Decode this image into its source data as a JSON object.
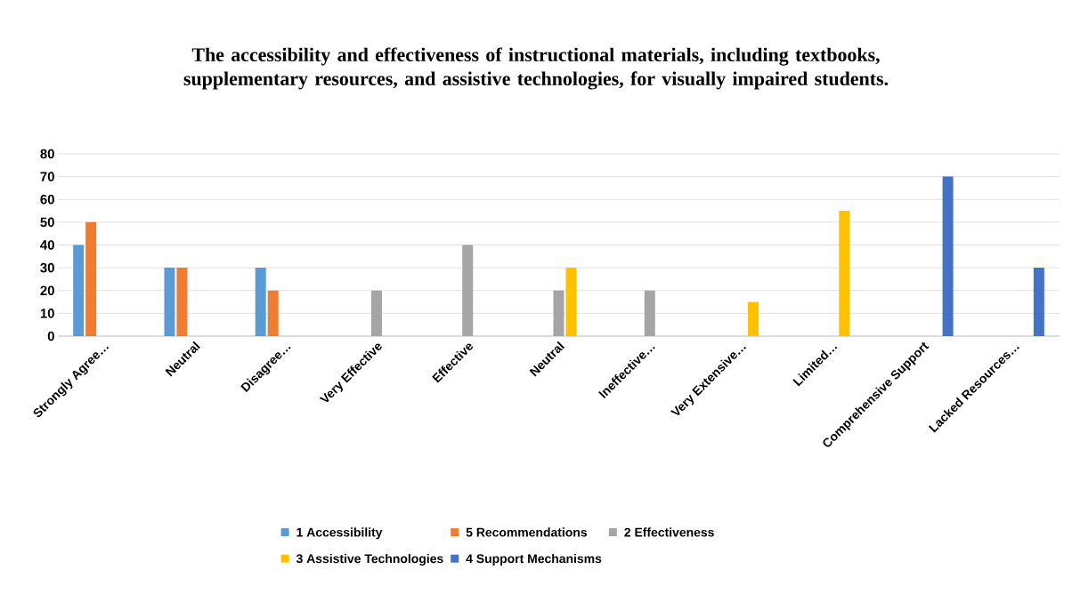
{
  "chart_data": {
    "type": "bar",
    "title": "The accessibility and effectiveness of instructional materials, including textbooks, supplementary resources, and assistive technologies, for visually impaired students.",
    "categories": [
      "Strongly Agree…",
      "Neutral",
      "Disagree…",
      "Very Effective",
      "Effective",
      "Neutral",
      "Ineffective…",
      "Very Extensive…",
      "Limited…",
      "Comprehensive Support",
      "Lacked Resources…"
    ],
    "series": [
      {
        "name": "1 Accessibility",
        "color": "#5b9bd5",
        "values": [
          40,
          30,
          30,
          null,
          null,
          null,
          null,
          null,
          null,
          null,
          null
        ]
      },
      {
        "name": "5 Recommendations",
        "color": "#ed7d31",
        "values": [
          50,
          30,
          20,
          null,
          null,
          null,
          null,
          null,
          null,
          null,
          null
        ]
      },
      {
        "name": "2 Effectiveness",
        "color": "#a5a5a5",
        "values": [
          null,
          null,
          null,
          20,
          40,
          20,
          20,
          null,
          null,
          null,
          null
        ]
      },
      {
        "name": "3 Assistive Technologies",
        "color": "#ffc000",
        "values": [
          null,
          null,
          null,
          null,
          null,
          30,
          null,
          15,
          55,
          null,
          null
        ]
      },
      {
        "name": "4 Support Mechanisms",
        "color": "#4472c4",
        "values": [
          null,
          null,
          null,
          null,
          null,
          null,
          null,
          null,
          null,
          70,
          30
        ]
      }
    ],
    "ylim": [
      0,
      80
    ],
    "yticks": [
      0,
      10,
      20,
      30,
      40,
      50,
      60,
      70,
      80
    ],
    "grid": "y",
    "legend": "bottom"
  }
}
